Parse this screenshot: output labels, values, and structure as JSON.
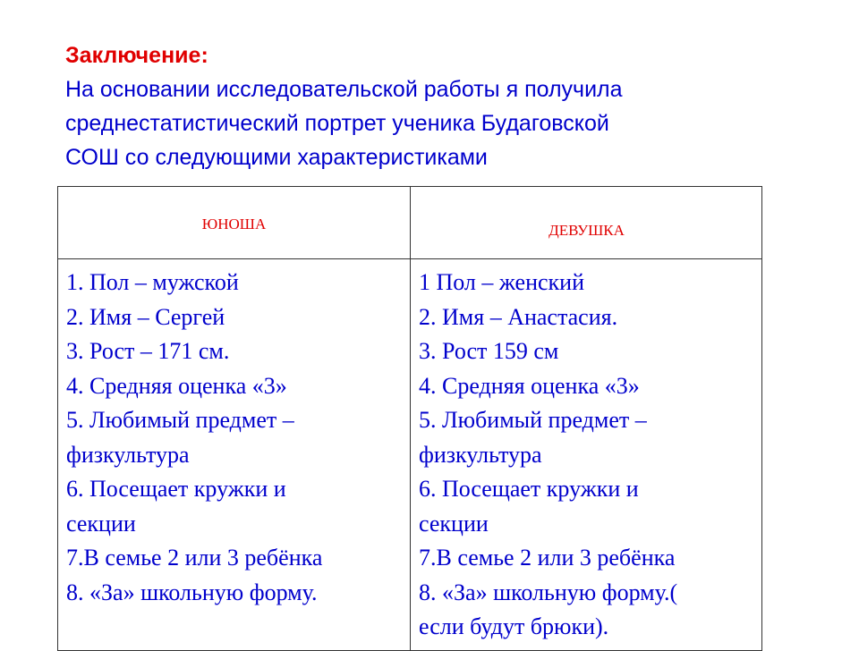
{
  "heading": "Заключение:",
  "intro_lines": [
    "На основании исследовательской работы я получила",
    "среднестатистический портрет ученика Будаговской",
    "СОШ со следующими характеристиками"
  ],
  "table": {
    "headers": [
      "ЮНОША",
      "ДЕВУШКА"
    ],
    "boy": [
      "1. Пол – мужской",
      "2. Имя – Сергей",
      "3. Рост – 171 см.",
      "4. Средняя оценка «3»",
      "5. Любимый предмет –",
      "физкультура",
      "6. Посещает кружки и",
      "секции",
      "7.В семье 2 или 3 ребёнка",
      "8. «За» школьную форму."
    ],
    "girl": [
      "1 Пол – женский",
      "2. Имя – Анастасия.",
      "3. Рост 159 см",
      "4. Средняя оценка  «3»",
      "5. Любимый предмет –",
      "физкультура",
      "6. Посещает кружки и",
      "секции",
      "7.В семье 2 или 3 ребёнка",
      "8. «За» школьную форму.(",
      "если будут брюки)."
    ]
  },
  "colors": {
    "heading": "#e00000",
    "text": "#0000cc"
  }
}
